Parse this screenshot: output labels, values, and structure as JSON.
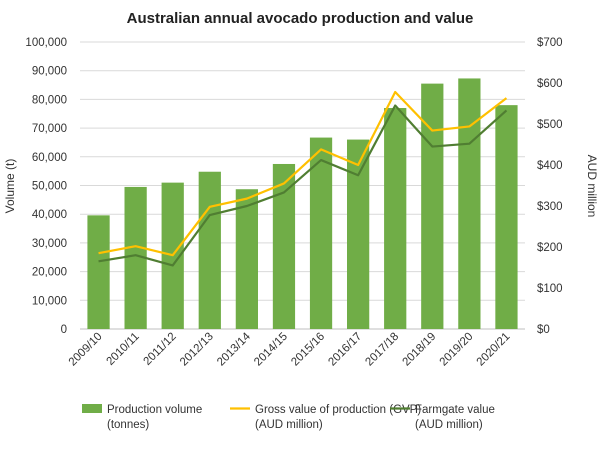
{
  "chart_data": {
    "type": "bar",
    "title": "Australian annual avocado production and value",
    "categories": [
      "2009/10",
      "2010/11",
      "2011/12",
      "2012/13",
      "2013/14",
      "2014/15",
      "2015/16",
      "2016/17",
      "2017/18",
      "2018/19",
      "2019/20",
      "2020/21"
    ],
    "series": [
      {
        "name": "Production volume (tonnes)",
        "legend_lines": [
          "Production volume",
          "(tonnes)"
        ],
        "type": "bar",
        "axis": "left",
        "color": "#70ad47",
        "values": [
          39600,
          49500,
          51000,
          54800,
          48700,
          57500,
          66700,
          66000,
          77000,
          85500,
          87300,
          78000
        ]
      },
      {
        "name": "Gross value of production (GVP) (AUD million)",
        "legend_lines": [
          "Gross value of production (GVP)",
          "(AUD million)"
        ],
        "type": "line",
        "axis": "right",
        "color": "#ffc000",
        "values": [
          185,
          202,
          180,
          298,
          318,
          355,
          438,
          400,
          578,
          484,
          494,
          563
        ]
      },
      {
        "name": "Farmgate value (AUD million)",
        "legend_lines": [
          "Farmgate value",
          "(AUD million)"
        ],
        "type": "line",
        "axis": "right",
        "color": "#507e32",
        "values": [
          165,
          180,
          155,
          278,
          300,
          333,
          412,
          375,
          545,
          445,
          452,
          533
        ]
      }
    ],
    "ylabel": "Volume (t)",
    "y2label": "AUD million",
    "ylim": [
      0,
      100000
    ],
    "y2lim": [
      0,
      700
    ],
    "yticks": [
      "0",
      "10,000",
      "20,000",
      "30,000",
      "40,000",
      "50,000",
      "60,000",
      "70,000",
      "80,000",
      "90,000",
      "100,000"
    ],
    "y2ticks": [
      "$0",
      "$100",
      "$200",
      "$300",
      "$400",
      "$500",
      "$600",
      "$700"
    ],
    "grid": true,
    "legend_position": "bottom"
  }
}
